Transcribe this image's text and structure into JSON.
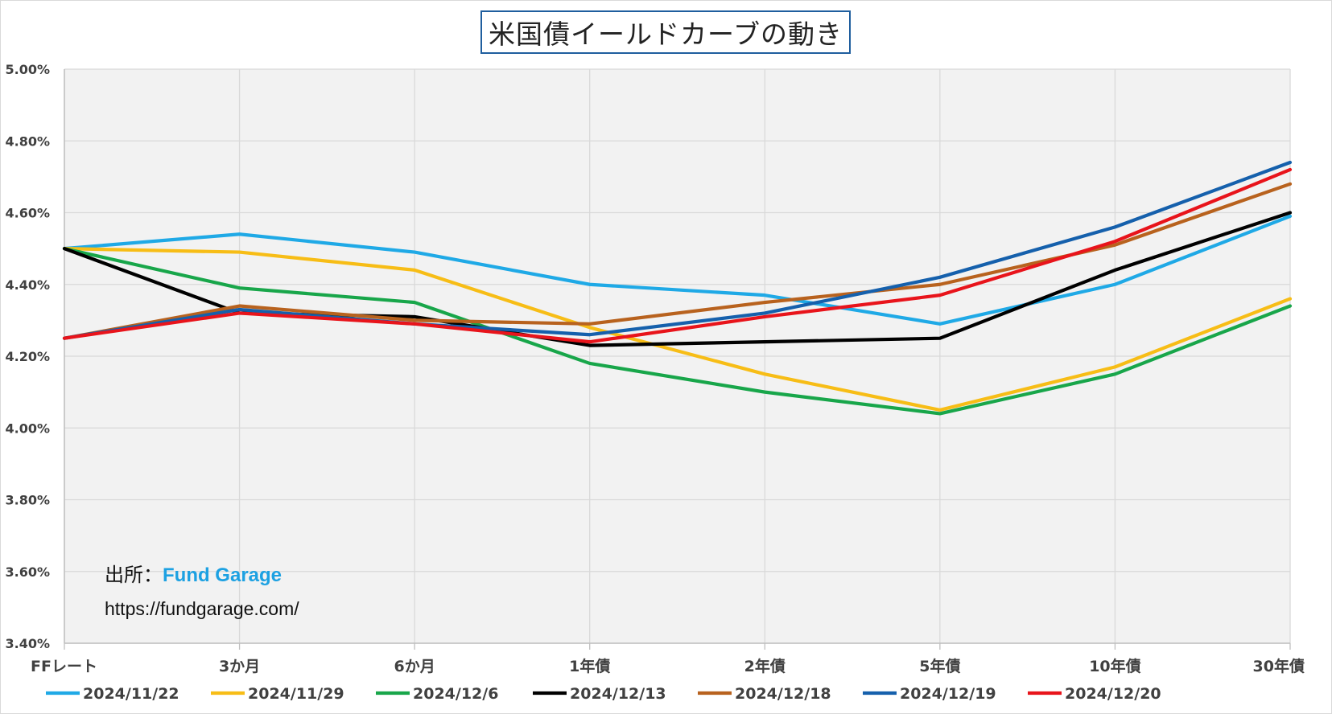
{
  "title": "米国債イールドカーブの動き",
  "source": {
    "label": "出所：",
    "name": "Fund Garage",
    "url": "https://fundgarage.com/"
  },
  "chart_data": {
    "type": "line",
    "title": "米国債イールドカーブの動き",
    "categories": [
      "FFレート",
      "3か月",
      "6か月",
      "1年債",
      "2年債",
      "5年債",
      "10年債",
      "30年債"
    ],
    "y_ticks": [
      "3.40%",
      "3.60%",
      "3.80%",
      "4.00%",
      "4.20%",
      "4.40%",
      "4.60%",
      "4.80%",
      "5.00%"
    ],
    "ylim": [
      3.4,
      5.0
    ],
    "grid": true,
    "legend": "bottom",
    "series": [
      {
        "name": "2024/11/22",
        "color": "#1fa9e6",
        "values": [
          4.5,
          4.54,
          4.49,
          4.4,
          4.37,
          4.29,
          4.4,
          4.59
        ]
      },
      {
        "name": "2024/11/29",
        "color": "#f7bd16",
        "values": [
          4.5,
          4.49,
          4.44,
          4.28,
          4.15,
          4.05,
          4.17,
          4.36
        ]
      },
      {
        "name": "2024/12/6",
        "color": "#18a64a",
        "values": [
          4.5,
          4.39,
          4.35,
          4.18,
          4.1,
          4.04,
          4.15,
          4.34
        ]
      },
      {
        "name": "2024/12/13",
        "color": "#000000",
        "values": [
          4.5,
          4.32,
          4.31,
          4.23,
          4.24,
          4.25,
          4.44,
          4.6
        ]
      },
      {
        "name": "2024/12/18",
        "color": "#b8621e",
        "values": [
          4.25,
          4.34,
          4.3,
          4.29,
          4.35,
          4.4,
          4.51,
          4.68
        ]
      },
      {
        "name": "2024/12/19",
        "color": "#1560ac",
        "values": [
          4.25,
          4.33,
          4.29,
          4.26,
          4.32,
          4.42,
          4.56,
          4.74
        ]
      },
      {
        "name": "2024/12/20",
        "color": "#e8141b",
        "values": [
          4.25,
          4.32,
          4.29,
          4.24,
          4.31,
          4.37,
          4.52,
          4.72
        ]
      }
    ]
  }
}
